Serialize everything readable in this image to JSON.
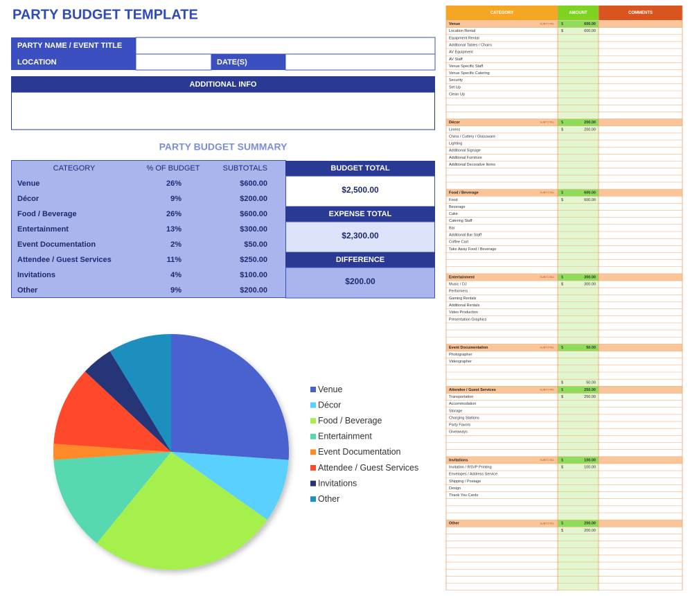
{
  "header": {
    "title": "PARTY BUDGET TEMPLATE"
  },
  "event_form": {
    "party_name": "PARTY NAME / EVENT TITLE",
    "location": "LOCATION",
    "dates": "DATE(S)",
    "additional_info": "ADDITIONAL INFO"
  },
  "summary": {
    "title": "PARTY BUDGET SUMMARY",
    "columns": [
      "CATEGORY",
      "% OF BUDGET",
      "SUBTOTALS"
    ],
    "rows": [
      [
        "Venue",
        "26%",
        "$600.00"
      ],
      [
        "Décor",
        "9%",
        "$200.00"
      ],
      [
        "Food / Beverage",
        "26%",
        "$600.00"
      ],
      [
        "Entertainment",
        "13%",
        "$300.00"
      ],
      [
        "Event Documentation",
        "2%",
        "$50.00"
      ],
      [
        "Attendee / Guest Services",
        "11%",
        "$250.00"
      ],
      [
        "Invitations",
        "4%",
        "$100.00"
      ],
      [
        "Other",
        "9%",
        "$200.00"
      ]
    ]
  },
  "totals": [
    {
      "label": "BUDGET TOTAL",
      "value": "$2,500.00"
    },
    {
      "label": "EXPENSE TOTAL",
      "value": "$2,300.00"
    },
    {
      "label": "DIFFERENCE",
      "value": "$200.00"
    }
  ],
  "chart_data": {
    "type": "pie",
    "categories": [
      "Venue",
      "Décor",
      "Food / Beverage",
      "Entertainment",
      "Event Documentation",
      "Attendee / Guest Services",
      "Invitations",
      "Other"
    ],
    "values": [
      600,
      200,
      600,
      300,
      50,
      250,
      100,
      200
    ],
    "colors": [
      "#4a62d0",
      "#5ad0ff",
      "#a6f04e",
      "#56d9b0",
      "#ff8a2a",
      "#ff4a2a",
      "#263478",
      "#1e8fbf"
    ],
    "legend": "right"
  },
  "budget_sheet": {
    "columns": [
      "CATEGORY",
      "AMOUNT",
      "COMMENTS"
    ],
    "subtotal_label": "SUBTOTAL",
    "currency": "$",
    "sections": [
      {
        "name": "Venue",
        "amount": "600.00",
        "items": [
          {
            "label": "Location Rental",
            "amount": "600.00"
          },
          {
            "label": "Equipment Rental"
          },
          {
            "label": "Additional Tables / Chairs"
          },
          {
            "label": "AV Equipment"
          },
          {
            "label": "AV Staff"
          },
          {
            "label": "Venue Specific Staff"
          },
          {
            "label": "Venue Specific Catering"
          },
          {
            "label": "Security"
          },
          {
            "label": "Set Up"
          },
          {
            "label": "Clean Up"
          },
          null,
          null,
          null
        ]
      },
      {
        "name": "Décor",
        "amount": "200.00",
        "items": [
          {
            "label": "Linens",
            "amount": "200.00"
          },
          {
            "label": "China / Cutlery / Glassware"
          },
          {
            "label": "Lighting"
          },
          {
            "label": "Additional Signage"
          },
          {
            "label": "Additional Furniture"
          },
          {
            "label": "Additional Decorative Items"
          },
          null,
          null,
          null
        ]
      },
      {
        "name": "Food / Beverage",
        "amount": "600.00",
        "items": [
          {
            "label": "Food",
            "amount": "600.00"
          },
          {
            "label": "Beverage"
          },
          {
            "label": "Cake"
          },
          {
            "label": "Catering Staff"
          },
          {
            "label": "Bar"
          },
          {
            "label": "Additional Bar Staff"
          },
          {
            "label": "Coffee Cart"
          },
          {
            "label": "Take Away Food / Beverage"
          },
          null,
          null,
          null
        ]
      },
      {
        "name": "Entertainment",
        "amount": "300.00",
        "items": [
          {
            "label": "Music / DJ",
            "amount": "300.00"
          },
          {
            "label": "Performers"
          },
          {
            "label": "Gaming Rentals"
          },
          {
            "label": "Additional Rentals"
          },
          {
            "label": "Video Production"
          },
          {
            "label": "Presentation Graphics"
          },
          null,
          null,
          null
        ]
      },
      {
        "name": "Event Documentation",
        "amount": "50.00",
        "items": [
          {
            "label": "Photographer"
          },
          {
            "label": "Videographer"
          },
          null,
          null,
          {
            "amount": "50.00"
          }
        ]
      },
      {
        "name": "Attendee / Guest Services",
        "amount": "250.00",
        "items": [
          {
            "label": "Transportation",
            "amount": "250.00"
          },
          {
            "label": "Accommodation"
          },
          {
            "label": "Storage"
          },
          {
            "label": "Charging Stations"
          },
          {
            "label": "Party Favors"
          },
          {
            "label": "Giveaways"
          },
          null,
          null,
          null
        ]
      },
      {
        "name": "Invitations",
        "amount": "100.00",
        "items": [
          {
            "label": "Invitation / RSVP Printing",
            "amount": "100.00"
          },
          {
            "label": "Envelopes / Address Service"
          },
          {
            "label": "Shipping / Postage"
          },
          {
            "label": "Design"
          },
          {
            "label": "Thank You Cards"
          },
          null,
          null,
          null
        ]
      },
      {
        "name": "Other",
        "amount": "200.00",
        "items": [
          {
            "amount": "200.00"
          },
          null,
          null,
          null,
          null,
          null,
          null,
          null,
          null
        ]
      }
    ]
  }
}
